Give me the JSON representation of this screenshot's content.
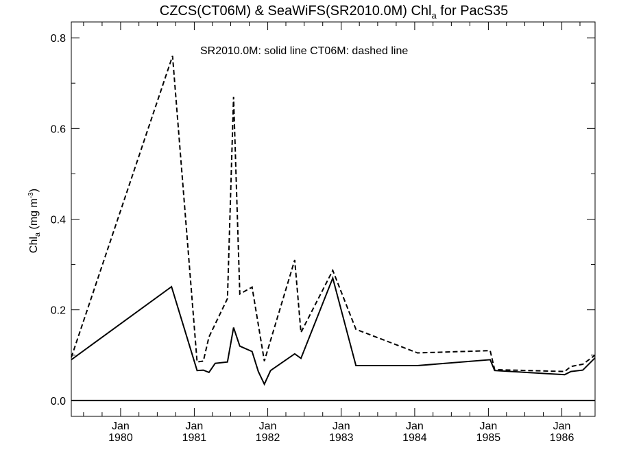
{
  "chart_data": {
    "type": "line",
    "title": {
      "prefix": "CZCS(CT06M) & SeaWiFS(SR2010.0M)  Chl",
      "sub": "a",
      "suffix": " for PacS35"
    },
    "annotation": "SR2010.0M: solid line   CT06M: dashed line",
    "ylabel": {
      "a": "Chl",
      "b": "a",
      "c": " (mg m",
      "d": "-3",
      "e": ")"
    },
    "xlim": [
      "1979-05-01",
      "1986-06-15"
    ],
    "ylim": [
      -0.035,
      0.835
    ],
    "yticks": [
      0.0,
      0.2,
      0.4,
      0.6,
      0.8
    ],
    "ytick_labels": [
      "0.0",
      "0.2",
      "0.4",
      "0.6",
      "0.8"
    ],
    "xticks": [
      {
        "date": "1980-01-01",
        "month": "Jan",
        "year": "1980"
      },
      {
        "date": "1981-01-01",
        "month": "Jan",
        "year": "1981"
      },
      {
        "date": "1982-01-01",
        "month": "Jan",
        "year": "1982"
      },
      {
        "date": "1983-01-01",
        "month": "Jan",
        "year": "1983"
      },
      {
        "date": "1984-01-01",
        "month": "Jan",
        "year": "1984"
      },
      {
        "date": "1985-01-01",
        "month": "Jan",
        "year": "1985"
      },
      {
        "date": "1986-01-01",
        "month": "Jan",
        "year": "1986"
      }
    ],
    "zero_line": 0.0,
    "series": [
      {
        "name": "SR2010.0M",
        "style": "solid",
        "color": "#000000",
        "points": [
          [
            "1979-05-01",
            0.09
          ],
          [
            "1980-09-10",
            0.251
          ],
          [
            "1981-01-15",
            0.066
          ],
          [
            "1981-02-15",
            0.067
          ],
          [
            "1981-03-15",
            0.062
          ],
          [
            "1981-04-15",
            0.082
          ],
          [
            "1981-06-15",
            0.085
          ],
          [
            "1981-07-15",
            0.161
          ],
          [
            "1981-08-15",
            0.12
          ],
          [
            "1981-10-15",
            0.108
          ],
          [
            "1981-11-15",
            0.064
          ],
          [
            "1981-12-15",
            0.036
          ],
          [
            "1982-01-15",
            0.066
          ],
          [
            "1982-05-15",
            0.103
          ],
          [
            "1982-06-15",
            0.093
          ],
          [
            "1982-11-20",
            0.27
          ],
          [
            "1983-03-15",
            0.077
          ],
          [
            "1984-01-15",
            0.077
          ],
          [
            "1985-01-10",
            0.09
          ],
          [
            "1985-02-01",
            0.066
          ],
          [
            "1986-01-15",
            0.057
          ],
          [
            "1986-02-15",
            0.064
          ],
          [
            "1986-04-15",
            0.067
          ],
          [
            "1986-06-15",
            0.094
          ]
        ]
      },
      {
        "name": "CT06M",
        "style": "dashed",
        "color": "#000000",
        "points": [
          [
            "1979-05-01",
            0.095
          ],
          [
            "1980-09-15",
            0.76
          ],
          [
            "1981-01-15",
            0.085
          ],
          [
            "1981-02-15",
            0.087
          ],
          [
            "1981-03-15",
            0.14
          ],
          [
            "1981-06-15",
            0.225
          ],
          [
            "1981-07-15",
            0.67
          ],
          [
            "1981-08-15",
            0.235
          ],
          [
            "1981-10-15",
            0.25
          ],
          [
            "1981-12-15",
            0.087
          ],
          [
            "1982-05-15",
            0.31
          ],
          [
            "1982-06-15",
            0.15
          ],
          [
            "1982-11-20",
            0.287
          ],
          [
            "1983-03-15",
            0.157
          ],
          [
            "1984-01-15",
            0.105
          ],
          [
            "1985-01-10",
            0.11
          ],
          [
            "1985-02-01",
            0.068
          ],
          [
            "1986-01-15",
            0.064
          ],
          [
            "1986-02-15",
            0.075
          ],
          [
            "1986-04-15",
            0.08
          ],
          [
            "1986-06-15",
            0.1
          ]
        ]
      }
    ],
    "grid": false,
    "legend": "none"
  }
}
